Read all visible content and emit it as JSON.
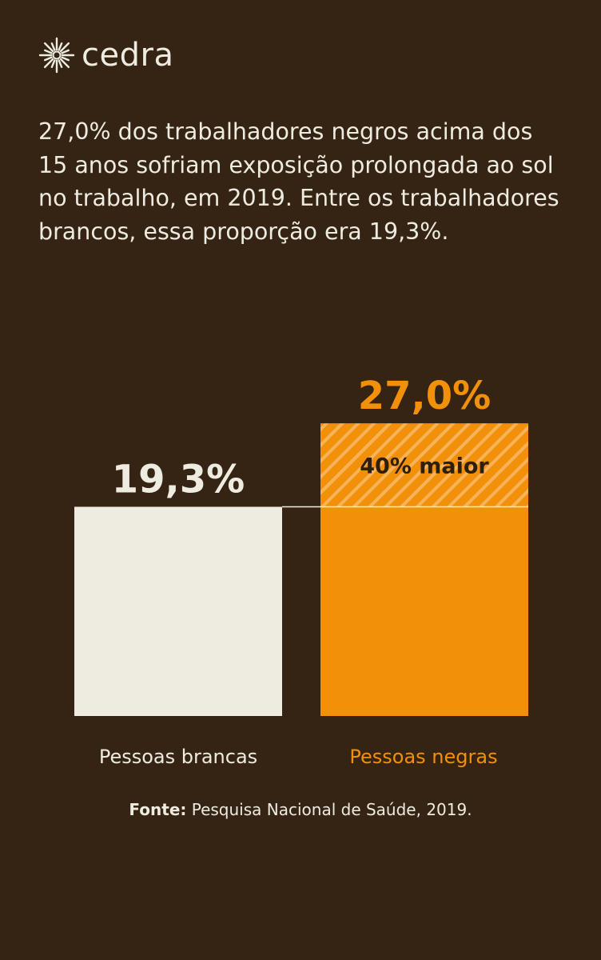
{
  "brand": {
    "name": "cedra",
    "logo_icon": "sun-burst-icon",
    "color": "#EEEBE1"
  },
  "headline": "27,0% dos trabalhadores negros acima dos 15 anos sofriam exposição prolongada ao sol no trabalho, em 2019. Entre os trabalhadores brancos, essa proporção era 19,3%.",
  "chart_data": {
    "type": "bar",
    "categories": [
      "Pessoas brancas",
      "Pessoas negras"
    ],
    "values": [
      19.3,
      27.0
    ],
    "value_labels": [
      "19,3%",
      "27,0%"
    ],
    "colors": [
      "#EEEBE1",
      "#F29109"
    ],
    "annotation": "40% maior",
    "annotation_color": "#2E1E0C",
    "grid": false,
    "legend": "none"
  },
  "source": {
    "label": "Fonte:",
    "text": "Pesquisa Nacional de Saúde, 2019."
  },
  "colors": {
    "background": "#352413",
    "text": "#EEEBE1",
    "accent": "#F29109"
  }
}
